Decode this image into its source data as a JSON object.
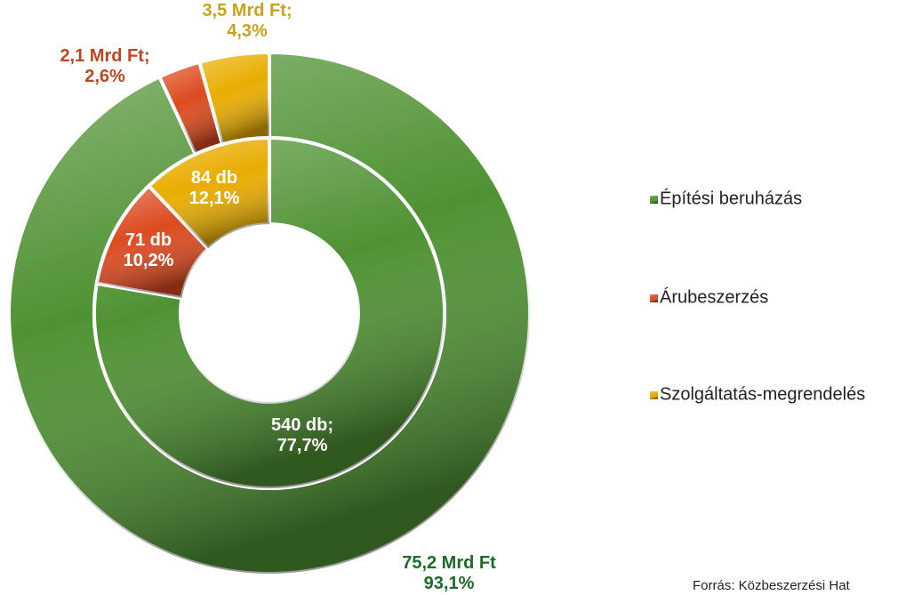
{
  "chart_data": {
    "type": "donut",
    "categories": [
      "Építési beruházás",
      "Árubeszerzés",
      "Szolgáltatás-megrendelés"
    ],
    "colors": [
      "#4f9233",
      "#dd4a1f",
      "#e9ad00"
    ],
    "label_colors": [
      "#1d6b2a",
      "#c0461f",
      "#c9a21c"
    ],
    "rings": [
      {
        "values": [
          75.2,
          2.1,
          3.5
        ],
        "value_labels": [
          "75,2 Mrd Ft",
          "2,1 Mrd Ft;",
          "3,5 Mrd Ft;"
        ],
        "percents": [
          93.1,
          2.6,
          4.3
        ],
        "percent_labels": [
          "93,1%",
          "2,6%",
          "4,3%"
        ]
      },
      {
        "values": [
          540,
          71,
          84
        ],
        "value_labels": [
          "540 db;",
          "71 db",
          "84 db"
        ],
        "percents": [
          77.7,
          10.2,
          12.1
        ],
        "percent_labels": [
          "77,7%",
          "10,2%",
          "12,1%"
        ]
      }
    ],
    "source": "Forrás: Közbeszerzési Hat"
  }
}
